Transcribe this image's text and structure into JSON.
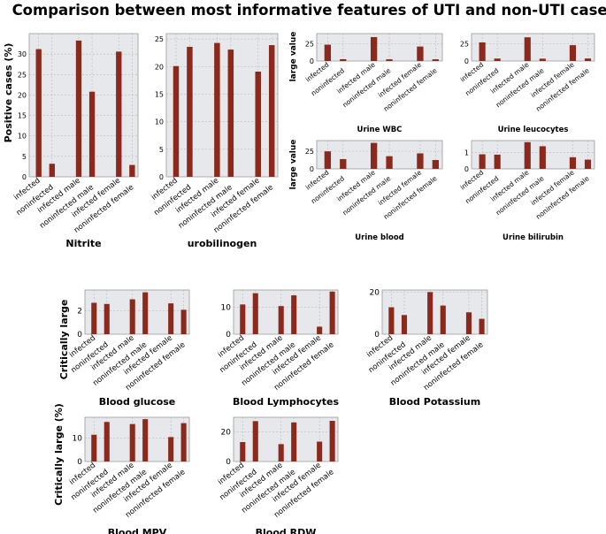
{
  "figure_title": "Comparison between most informative features of UTI and non-UTI cases",
  "shared_labels": {
    "positive_cases": "Positive cases (%)",
    "large_value": "large value",
    "critically_large": "Critically large",
    "critically_large_pct": "Critically large  (%)"
  },
  "colors": {
    "bar": "#8b2a1c",
    "panel_bg": "#e6e8ec",
    "grid": "#b8b8b8",
    "text": "#000000"
  },
  "chart_data": [
    {
      "type": "bar",
      "title": "Nitrite",
      "ylabel": "Positive cases (%)",
      "ylim": [
        0,
        35
      ],
      "yticks": [
        0,
        5,
        10,
        15,
        20,
        25,
        30
      ],
      "categories": [
        "infected",
        "noninfected",
        "infected male",
        "noninfected male",
        "infected female",
        "noninfected female"
      ],
      "values": [
        31.2,
        3.2,
        33.3,
        20.8,
        30.6,
        2.9
      ]
    },
    {
      "type": "bar",
      "title": "urobilinogen",
      "ylabel": "",
      "ylim": [
        0,
        26
      ],
      "yticks": [
        0,
        5,
        10,
        15,
        20,
        25
      ],
      "categories": [
        "infected",
        "noninfected",
        "infected male",
        "noninfected male",
        "infected female",
        "noninfected female"
      ],
      "values": [
        20.1,
        23.6,
        24.3,
        23.1,
        19.1,
        23.9
      ]
    },
    {
      "type": "bar",
      "title": "Urine WBC",
      "ylabel": "large value",
      "ylim": [
        0,
        40
      ],
      "yticks": [
        0,
        25
      ],
      "categories": [
        "infected",
        "noninfected",
        "infected male",
        "noninfected male",
        "infected female",
        "noninfected female"
      ],
      "values": [
        23.8,
        2.6,
        34.9,
        2.5,
        21.1,
        2.5
      ]
    },
    {
      "type": "bar",
      "title": "Urine leucocytes",
      "ylabel": "",
      "ylim": [
        0,
        40
      ],
      "yticks": [
        0,
        25
      ],
      "categories": [
        "infected",
        "noninfected",
        "infected male",
        "noninfected male",
        "infected female",
        "noninfected female"
      ],
      "values": [
        27.1,
        3.6,
        34.6,
        3.4,
        23.1,
        3.7
      ]
    },
    {
      "type": "bar",
      "title": "Urine blood",
      "ylabel": "large value",
      "ylim": [
        0,
        40
      ],
      "yticks": [
        0,
        25
      ],
      "categories": [
        "infected",
        "noninfected",
        "infected male",
        "noninfected male",
        "infected female",
        "noninfected female"
      ],
      "values": [
        24.8,
        13.8,
        36.7,
        17.9,
        21.9,
        12.5
      ]
    },
    {
      "type": "bar",
      "title": "Urine bilirubin",
      "ylabel": "",
      "ylim": [
        0,
        1.75
      ],
      "yticks": [
        0,
        1
      ],
      "categories": [
        "infected",
        "noninfected",
        "infected male",
        "noninfected male",
        "infected female",
        "noninfected female"
      ],
      "values": [
        0.9,
        0.88,
        1.65,
        1.4,
        0.72,
        0.57
      ]
    },
    {
      "type": "bar",
      "title": "Blood glucose",
      "ylabel": "Critically large",
      "ylim": [
        0,
        3.8
      ],
      "yticks": [
        0,
        2
      ],
      "categories": [
        "infected",
        "noninfected",
        "infected male",
        "noninfected male",
        "infected female",
        "noninfected female"
      ],
      "values": [
        2.7,
        2.6,
        3.0,
        3.6,
        2.65,
        2.1
      ]
    },
    {
      "type": "bar",
      "title": "Blood Lymphocytes",
      "ylabel": "",
      "ylim": [
        0,
        16.5
      ],
      "yticks": [
        0,
        10
      ],
      "categories": [
        "infected",
        "noninfected",
        "infected male",
        "noninfected male",
        "infected female",
        "noninfected female"
      ],
      "values": [
        11.1,
        15.3,
        10.5,
        14.5,
        2.8,
        15.9
      ]
    },
    {
      "type": "bar",
      "title": "Blood Potassium",
      "ylabel": "",
      "ylim": [
        0,
        21
      ],
      "yticks": [
        0,
        20
      ],
      "categories": [
        "infected",
        "noninfected",
        "infected male",
        "noninfected male",
        "infected female",
        "noninfected female"
      ],
      "values": [
        12.8,
        9.1,
        20.0,
        13.6,
        10.4,
        7.3
      ]
    },
    {
      "type": "bar",
      "title": "Blood MPV",
      "ylabel": "Critically large  (%)",
      "ylim": [
        0,
        19
      ],
      "yticks": [
        0,
        10
      ],
      "categories": [
        "infected",
        "noninfected",
        "infected male",
        "noninfected male",
        "infected female",
        "noninfected female"
      ],
      "values": [
        11.5,
        17.0,
        16.1,
        18.2,
        10.5,
        16.5
      ]
    },
    {
      "type": "bar",
      "title": "Blood RDW",
      "ylabel": "",
      "ylim": [
        0,
        30
      ],
      "yticks": [
        0,
        20
      ],
      "categories": [
        "infected",
        "noninfected",
        "infected male",
        "noninfected male",
        "infected female",
        "noninfected female"
      ],
      "values": [
        13.2,
        27.4,
        11.8,
        26.5,
        13.5,
        27.6
      ]
    }
  ]
}
